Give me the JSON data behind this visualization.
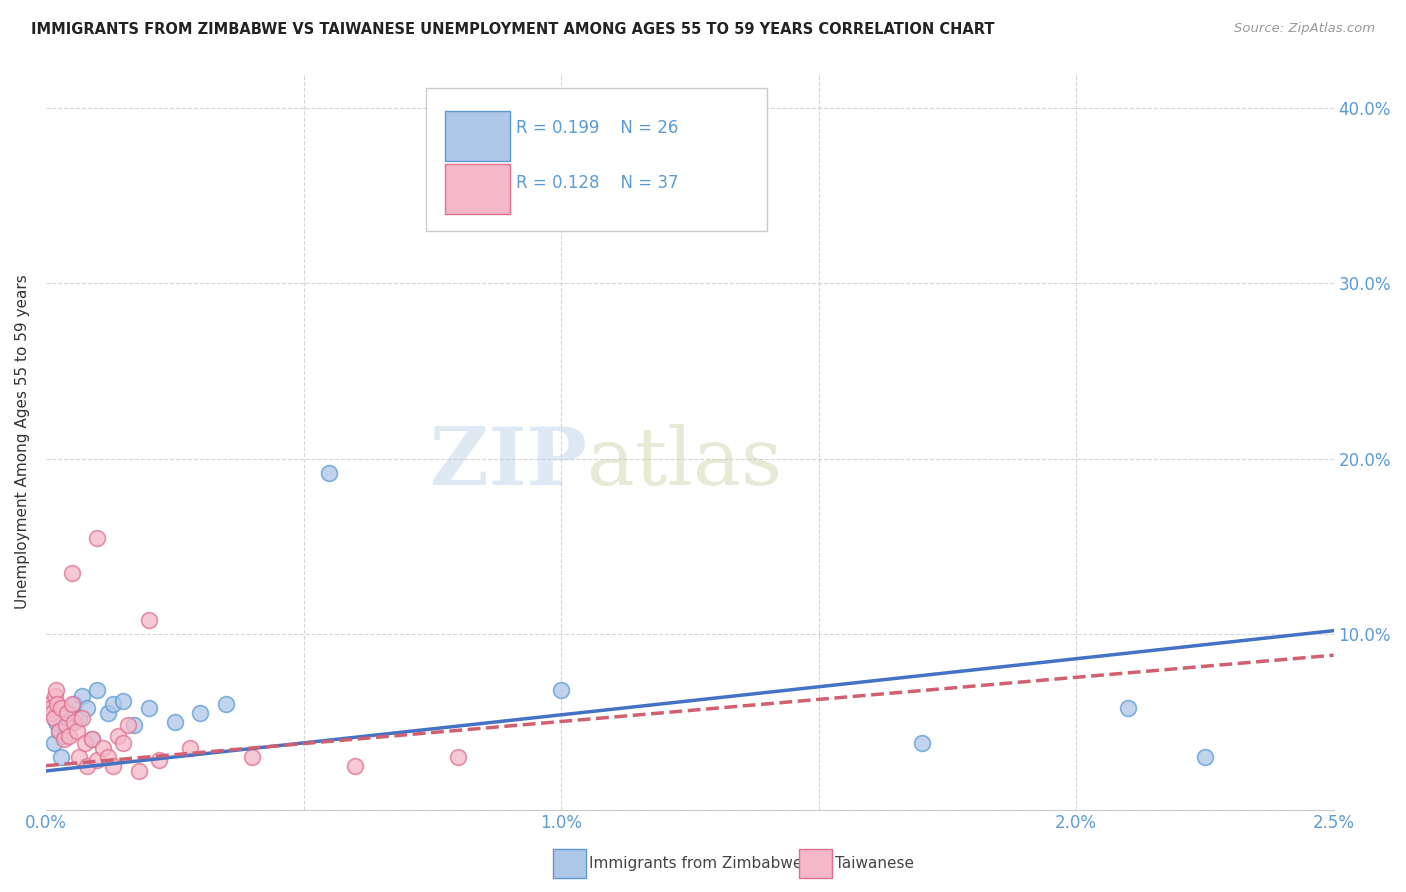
{
  "title": "IMMIGRANTS FROM ZIMBABWE VS TAIWANESE UNEMPLOYMENT AMONG AGES 55 TO 59 YEARS CORRELATION CHART",
  "source": "Source: ZipAtlas.com",
  "ylabel": "Unemployment Among Ages 55 to 59 years",
  "xlim": [
    0.0,
    0.025
  ],
  "ylim": [
    0.0,
    0.42
  ],
  "legend_R1": "R = 0.199",
  "legend_N1": "N = 26",
  "legend_R2": "R = 0.128",
  "legend_N2": "N = 37",
  "color_zimbabwe_fill": "#aec6e8",
  "color_zimbabwe_edge": "#5b9bd5",
  "color_taiwanese_fill": "#f4b8c8",
  "color_taiwanese_edge": "#e07090",
  "color_line_zimbabwe": "#4472c4",
  "color_line_taiwanese": "#d06070",
  "color_tick": "#5b9bd5",
  "color_title": "#222222",
  "color_source": "#999999",
  "background": "#ffffff",
  "grid_color": "#cccccc",
  "zim_x": [
    0.00015,
    0.0002,
    0.00025,
    0.0003,
    0.00035,
    0.0004,
    0.00045,
    0.00055,
    0.00065,
    0.0007,
    0.0008,
    0.0009,
    0.001,
    0.0012,
    0.0013,
    0.0015,
    0.0017,
    0.002,
    0.0025,
    0.003,
    0.0035,
    0.0055,
    0.01,
    0.017,
    0.021,
    0.0225
  ],
  "zim_y": [
    0.038,
    0.05,
    0.045,
    0.03,
    0.042,
    0.055,
    0.048,
    0.06,
    0.052,
    0.065,
    0.058,
    0.04,
    0.068,
    0.055,
    0.06,
    0.062,
    0.048,
    0.058,
    0.05,
    0.055,
    0.06,
    0.192,
    0.068,
    0.038,
    0.058,
    0.03
  ],
  "tai_x": [
    8e-05,
    0.0001,
    0.00012,
    0.00015,
    0.00018,
    0.0002,
    0.00022,
    0.00025,
    0.0003,
    0.00035,
    0.00038,
    0.0004,
    0.00045,
    0.0005,
    0.00055,
    0.0006,
    0.00065,
    0.0007,
    0.00075,
    0.0008,
    0.0009,
    0.001,
    0.0011,
    0.0012,
    0.0013,
    0.0014,
    0.0015,
    0.0016,
    0.0018,
    0.002,
    0.0022,
    0.0028,
    0.004,
    0.006,
    0.008,
    0.001,
    0.0005
  ],
  "tai_y": [
    0.06,
    0.058,
    0.055,
    0.052,
    0.065,
    0.068,
    0.06,
    0.045,
    0.058,
    0.04,
    0.048,
    0.055,
    0.042,
    0.06,
    0.05,
    0.045,
    0.03,
    0.052,
    0.038,
    0.025,
    0.04,
    0.028,
    0.035,
    0.03,
    0.025,
    0.042,
    0.038,
    0.048,
    0.022,
    0.108,
    0.028,
    0.035,
    0.03,
    0.025,
    0.03,
    0.155,
    0.135
  ],
  "zim_line_x": [
    0.0,
    0.025
  ],
  "zim_line_y": [
    0.022,
    0.102
  ],
  "tai_line_x": [
    0.0,
    0.025
  ],
  "tai_line_y": [
    0.025,
    0.088
  ]
}
